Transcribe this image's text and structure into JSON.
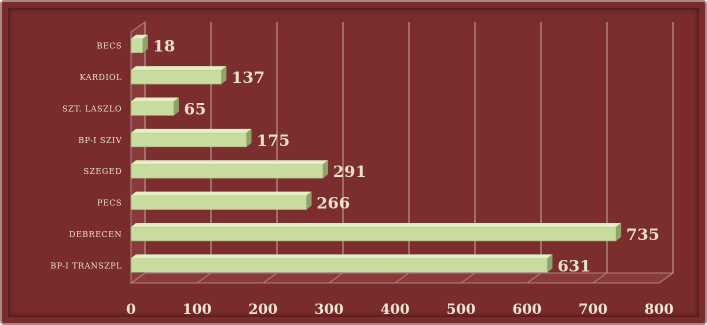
{
  "chart_data": {
    "type": "bar",
    "orientation": "horizontal",
    "categories": [
      "BP-I TRANSZPL",
      "DEBRECEN",
      "PECS",
      "SZEGED",
      "BP-I SZIV",
      "SZT. LASZLO",
      "KARDIOL",
      "BECS"
    ],
    "values": [
      631,
      735,
      266,
      291,
      175,
      65,
      137,
      18
    ],
    "xlim": [
      0,
      800
    ],
    "xticks": [
      0,
      100,
      200,
      300,
      400,
      500,
      600,
      700,
      800
    ],
    "grid": true,
    "title": "",
    "xlabel": "",
    "ylabel": "",
    "colors": {
      "background": "#7a2c2c",
      "bar_front": "#c8dca0",
      "bar_top": "#e4efc8",
      "bar_side": "#8ea468",
      "grid": "#b08080"
    }
  }
}
